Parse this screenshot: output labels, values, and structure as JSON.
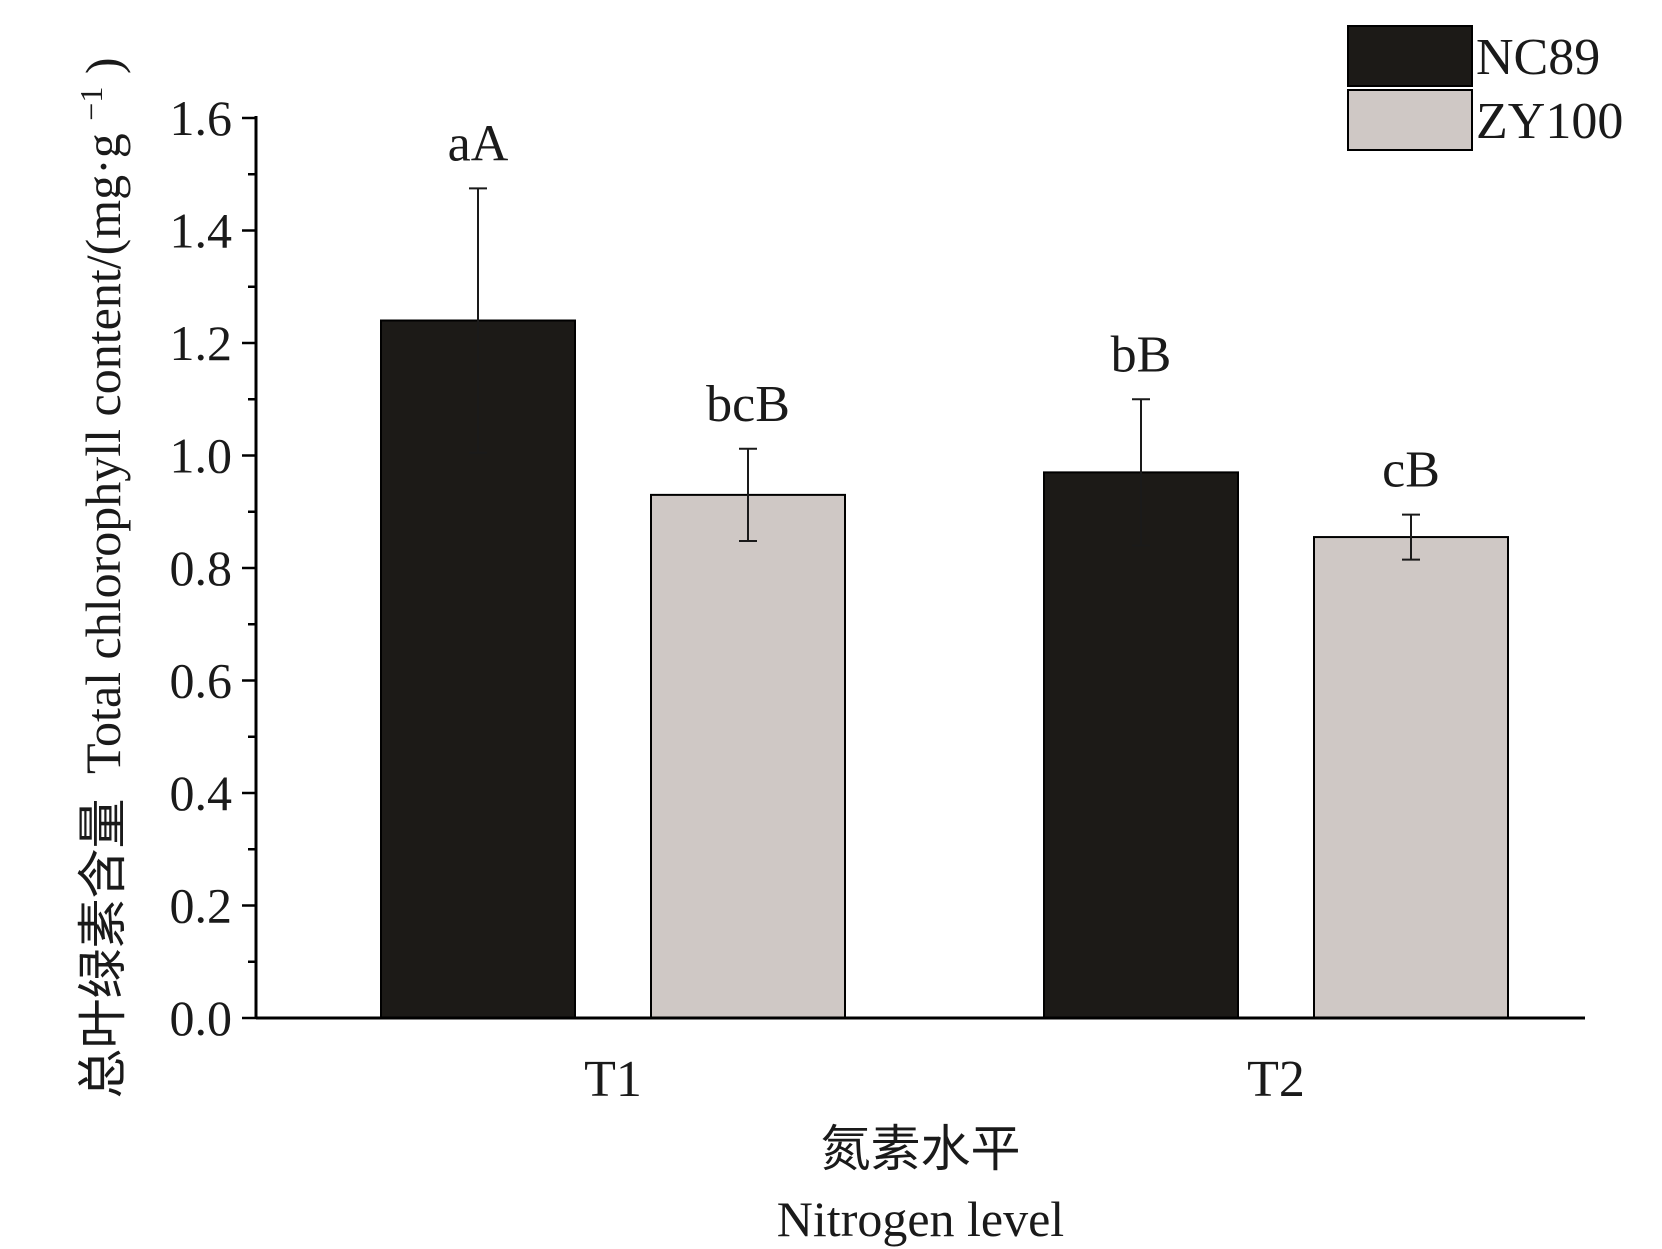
{
  "chart_data": {
    "type": "bar",
    "categories": [
      "T1",
      "T2"
    ],
    "series": [
      {
        "name": "NC89",
        "color": "#1c1a17",
        "values": [
          1.24,
          0.97
        ],
        "errors": [
          0.235,
          0.13
        ],
        "labels": [
          "aA",
          "bB"
        ]
      },
      {
        "name": "ZY100",
        "color": "#cfc8c5",
        "values": [
          0.93,
          0.855
        ],
        "errors": [
          0.082,
          0.04
        ],
        "labels": [
          "bcB",
          "cB"
        ]
      }
    ],
    "xlabel_cn": "氮素水平",
    "xlabel_en": "Nitrogen level",
    "ylabel_cn": "总叶绿素含量",
    "ylabel_en": "Total chlorophyll content/(mg·g",
    "ylabel_sup": "−1",
    "ylabel_close": ")",
    "ylim": [
      0,
      1.6
    ],
    "yticks": [
      0.0,
      0.2,
      0.4,
      0.6,
      0.8,
      1.0,
      1.2,
      1.4,
      1.6
    ],
    "ytick_labels": [
      "0.0",
      "0.2",
      "0.4",
      "0.6",
      "0.8",
      "1.0",
      "1.2",
      "1.4",
      "1.6"
    ],
    "legend_position": "top-right",
    "grid": false
  }
}
